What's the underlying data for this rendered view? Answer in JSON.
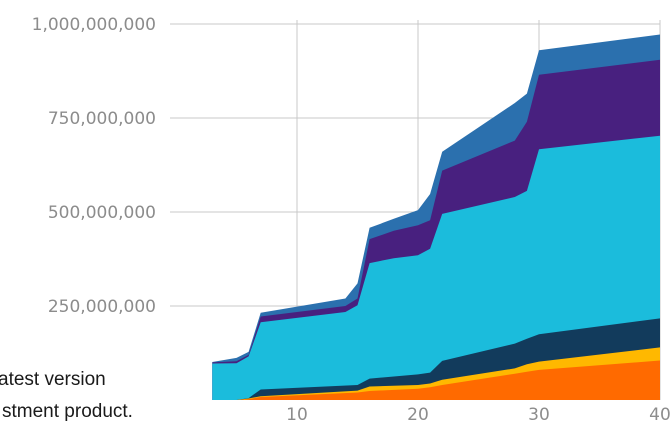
{
  "chart_data": {
    "type": "area",
    "stacked": true,
    "x_ticks": [
      10,
      20,
      30,
      40
    ],
    "y_ticks": [
      {
        "value": 250000000,
        "label": "250,000,000"
      },
      {
        "value": 500000000,
        "label": "500,000,000"
      },
      {
        "value": 750000000,
        "label": "750,000,000"
      },
      {
        "value": 1000000000,
        "label": "1,000,000,000"
      }
    ],
    "xlim": [
      3,
      40
    ],
    "ylim": [
      0,
      1000000000
    ],
    "grid": true,
    "series": [
      {
        "color": "#FF6A00",
        "points": [
          [
            3,
            0
          ],
          [
            5,
            0
          ],
          [
            6,
            2000000
          ],
          [
            7,
            8000000
          ],
          [
            15,
            20000000
          ],
          [
            16,
            24000000
          ],
          [
            20,
            30000000
          ],
          [
            21,
            34000000
          ],
          [
            22,
            40000000
          ],
          [
            28,
            70000000
          ],
          [
            29,
            75000000
          ],
          [
            30,
            80000000
          ],
          [
            40,
            105000000
          ]
        ]
      },
      {
        "color": "#FFB800",
        "points": [
          [
            3,
            0
          ],
          [
            5,
            0
          ],
          [
            6,
            4000000
          ],
          [
            7,
            10000000
          ],
          [
            15,
            25000000
          ],
          [
            16,
            36000000
          ],
          [
            20,
            40000000
          ],
          [
            21,
            44000000
          ],
          [
            22,
            54000000
          ],
          [
            28,
            84000000
          ],
          [
            29,
            95000000
          ],
          [
            30,
            102000000
          ],
          [
            40,
            140000000
          ]
        ]
      },
      {
        "color": "#123B5C",
        "points": [
          [
            3,
            0
          ],
          [
            5,
            0
          ],
          [
            6,
            5000000
          ],
          [
            7,
            28000000
          ],
          [
            15,
            40000000
          ],
          [
            16,
            57000000
          ],
          [
            20,
            68000000
          ],
          [
            21,
            73000000
          ],
          [
            22,
            104000000
          ],
          [
            28,
            150000000
          ],
          [
            29,
            163000000
          ],
          [
            30,
            175000000
          ],
          [
            40,
            217000000
          ]
        ]
      },
      {
        "color": "#1BBCDC",
        "points": [
          [
            3,
            97000000
          ],
          [
            5,
            98000000
          ],
          [
            6,
            116000000
          ],
          [
            7,
            207000000
          ],
          [
            14,
            234000000
          ],
          [
            15,
            252000000
          ],
          [
            16,
            364000000
          ],
          [
            18,
            377000000
          ],
          [
            20,
            385000000
          ],
          [
            21,
            402000000
          ],
          [
            22,
            495000000
          ],
          [
            28,
            540000000
          ],
          [
            29,
            556000000
          ],
          [
            30,
            667000000
          ],
          [
            40,
            703000000
          ]
        ]
      },
      {
        "color": "#48207F",
        "points": [
          [
            3,
            100000000
          ],
          [
            5,
            103000000
          ],
          [
            6,
            120000000
          ],
          [
            7,
            222000000
          ],
          [
            14,
            250000000
          ],
          [
            15,
            270000000
          ],
          [
            16,
            428000000
          ],
          [
            18,
            450000000
          ],
          [
            20,
            465000000
          ],
          [
            21,
            478000000
          ],
          [
            22,
            610000000
          ],
          [
            28,
            690000000
          ],
          [
            29,
            740000000
          ],
          [
            30,
            865000000
          ],
          [
            40,
            905000000
          ]
        ]
      },
      {
        "color": "#2B70AE",
        "points": [
          [
            3,
            101000000
          ],
          [
            5,
            112000000
          ],
          [
            6,
            128000000
          ],
          [
            7,
            232000000
          ],
          [
            14,
            270000000
          ],
          [
            15,
            310000000
          ],
          [
            16,
            458000000
          ],
          [
            18,
            482000000
          ],
          [
            20,
            505000000
          ],
          [
            21,
            548000000
          ],
          [
            22,
            660000000
          ],
          [
            28,
            790000000
          ],
          [
            29,
            815000000
          ],
          [
            30,
            930000000
          ],
          [
            40,
            972000000
          ]
        ]
      }
    ]
  },
  "overlay": {
    "line1": "atest version",
    "line2": "stment product."
  }
}
